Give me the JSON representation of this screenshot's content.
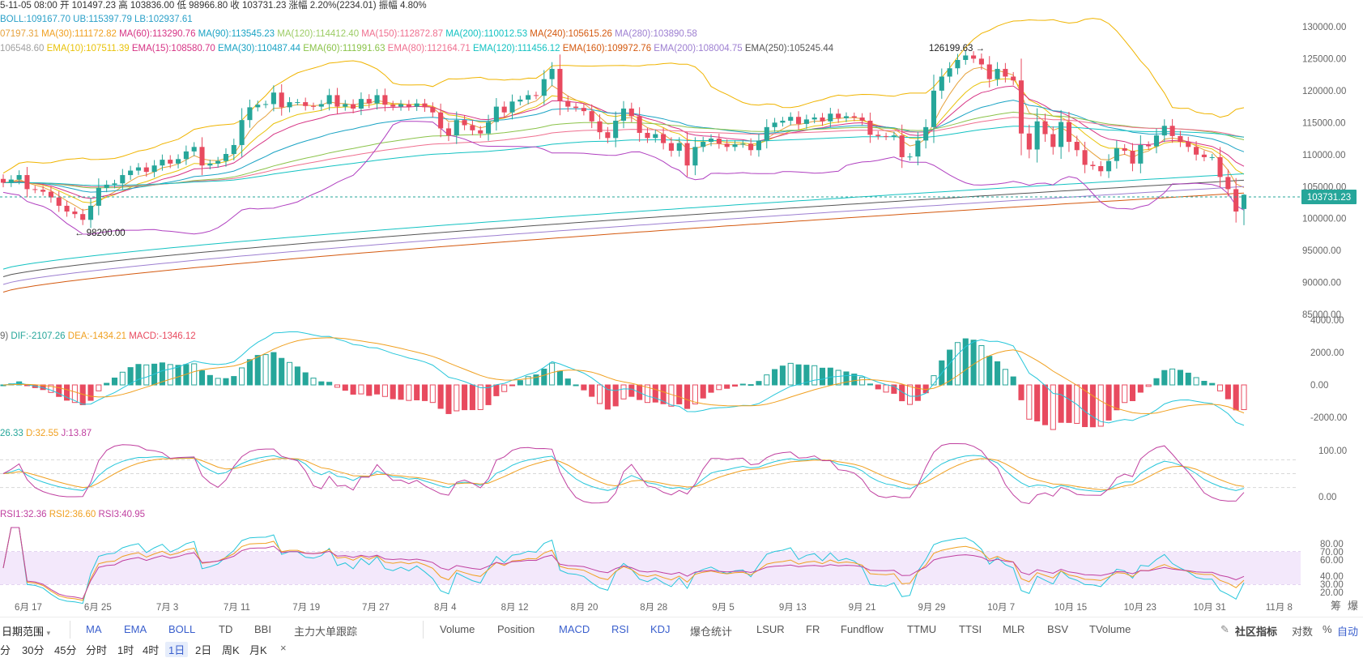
{
  "header": {
    "ohlc": "5-11-05 08:00 开 101497.23 高 103836.00 低 98966.80 收 103731.23 涨幅 2.20%(2234.01) 振幅 4.80%",
    "boll": "BOLL:109167.70 UB:115397.79 LB:102937.61",
    "ma": [
      {
        "text": "07197.31",
        "color": "#e6a23c"
      },
      {
        "text": "MA(30):111172.82",
        "color": "#f0a020"
      },
      {
        "text": "MA(60):113290.76",
        "color": "#d63384"
      },
      {
        "text": "MA(90):113545.23",
        "color": "#1aa3c4"
      },
      {
        "text": "MA(120):114412.40",
        "color": "#9ccc65"
      },
      {
        "text": "MA(150):112872.87",
        "color": "#ef6f8f"
      },
      {
        "text": "MA(200):110012.53",
        "color": "#13c2c2"
      },
      {
        "text": "MA(240):105615.26",
        "color": "#d4590f"
      },
      {
        "text": "MA(280):103890.58",
        "color": "#9d7fd1"
      }
    ],
    "ema": [
      {
        "text": "106548.60",
        "color": "#a0a0a0"
      },
      {
        "text": "EMA(10):107511.39",
        "color": "#e8c20a"
      },
      {
        "text": "EMA(15):108580.70",
        "color": "#d63384"
      },
      {
        "text": "EMA(30):110487.44",
        "color": "#1aa3c4"
      },
      {
        "text": "EMA(60):111991.63",
        "color": "#8bc34a"
      },
      {
        "text": "EMA(80):112164.71",
        "color": "#ef6f8f"
      },
      {
        "text": "EMA(120):111456.12",
        "color": "#13c2c2"
      },
      {
        "text": "EMA(160):109972.76",
        "color": "#d4590f"
      },
      {
        "text": "EMA(200):108004.75",
        "color": "#9d7fd1"
      },
      {
        "text": "EMA(250):105245.44",
        "color": "#555555"
      }
    ],
    "macd": [
      {
        "text": "9)",
        "color": "#666666"
      },
      {
        "text": "DIF:-2107.26",
        "color": "#26a69a"
      },
      {
        "text": "DEA:-1434.21",
        "color": "#f0a020"
      },
      {
        "text": "MACD:-1346.12",
        "color": "#e84a5f"
      }
    ],
    "kdj": [
      {
        "text": "26.33",
        "color": "#26a69a"
      },
      {
        "text": "D:32.55",
        "color": "#f0a020"
      },
      {
        "text": "J:13.87",
        "color": "#c040a0"
      }
    ],
    "rsi": [
      {
        "text": "RSI1:32.36",
        "color": "#c040a0"
      },
      {
        "text": "RSI2:36.60",
        "color": "#f0a020"
      },
      {
        "text": "RSI3:40.95",
        "color": "#c040a0"
      }
    ]
  },
  "annotations": {
    "high_label": "126199.63 →",
    "low_label": "← 98200.00",
    "current_price": "103731.23"
  },
  "chart_data": {
    "type": "candlestick",
    "symbol_interval": "1日",
    "price_axis_ticks": [
      "130000.00",
      "125000.00",
      "120000.00",
      "115000.00",
      "110000.00",
      "105000.00",
      "100000.00",
      "95000.00",
      "90000.00",
      "85000.00"
    ],
    "price_range": [
      84000,
      130500
    ],
    "macd_axis_ticks": [
      "4000.00",
      "2000.00",
      "0.00",
      "-2000.00"
    ],
    "kdj_axis_ticks": [
      "100.00",
      "0.00"
    ],
    "rsi_axis_ticks": [
      "80.00",
      "70.00",
      "60.00",
      "40.00",
      "30.00",
      "20.00"
    ],
    "x_labels": [
      "6月 17",
      "6月 25",
      "7月 3",
      "7月 11",
      "7月 19",
      "7月 27",
      "8月 4",
      "8月 12",
      "8月 20",
      "8月 28",
      "9月 5",
      "9月 13",
      "9月 21",
      "9月 29",
      "10月 7",
      "10月 15",
      "10月 23",
      "10月 31",
      "11月 8"
    ],
    "close": [
      105600,
      106100,
      106800,
      104600,
      104500,
      104200,
      103300,
      102000,
      101100,
      100700,
      99800,
      102000,
      104800,
      105300,
      105500,
      106800,
      107500,
      108000,
      107300,
      108300,
      109200,
      108600,
      109300,
      110500,
      111200,
      108300,
      108600,
      109000,
      110100,
      111500,
      115400,
      117400,
      117800,
      117900,
      119700,
      117400,
      118200,
      118200,
      117600,
      117500,
      117900,
      119300,
      117500,
      117900,
      117200,
      118700,
      118000,
      119300,
      117800,
      117500,
      117900,
      117500,
      118000,
      117400,
      116600,
      114100,
      113000,
      115400,
      114600,
      113800,
      113300,
      115100,
      117500,
      116600,
      118300,
      118600,
      119300,
      119200,
      121800,
      123400,
      118400,
      117500,
      117300,
      116800,
      115200,
      113500,
      112600,
      115300,
      117200,
      116000,
      113400,
      112600,
      113200,
      111800,
      110600,
      111800,
      108300,
      111200,
      112000,
      112500,
      111700,
      111200,
      111600,
      111700,
      110700,
      112200,
      114300,
      115000,
      115300,
      115900,
      114800,
      115500,
      115800,
      115200,
      116400,
      115700,
      116000,
      115800,
      115300,
      113100,
      112900,
      112800,
      113000,
      109600,
      109700,
      112200,
      114300,
      120000,
      122200,
      123500,
      124800,
      125500,
      125000,
      124100,
      121800,
      123400,
      122200,
      121600,
      113300,
      110800,
      115200,
      113200,
      111200,
      115100,
      112000,
      110700,
      108400,
      108200,
      107400,
      109000,
      111000,
      110600,
      108600,
      111500,
      111300,
      113000,
      114500,
      112900,
      112000,
      111200,
      110000,
      109600,
      109600,
      106500,
      104600,
      101100,
      103731
    ],
    "candle_open_first_last": [
      106200,
      101497
    ],
    "last_candle": {
      "open": 101497.23,
      "high": 103836.0,
      "low": 98966.8,
      "close": 103731.23
    },
    "extremes": {
      "high": 126199.63,
      "low": 98200.0
    },
    "indicators": {
      "BOLL": {
        "mid": 109167.7,
        "upper": 115397.79,
        "lower": 102937.61
      },
      "MACD": {
        "DIF": -2107.26,
        "DEA": -1434.21,
        "MACD": -1346.12
      },
      "KDJ": {
        "K": 26.33,
        "D": 32.55,
        "J": 13.87
      },
      "RSI": {
        "RSI1": 32.36,
        "RSI2": 36.6,
        "RSI3": 40.95
      }
    }
  },
  "colors": {
    "up": "#26a69a",
    "down": "#e84a5f",
    "grid": "#f2f2f2",
    "axis_text": "#666666",
    "price_tag": "#26a69a",
    "rsi_band": "#f3e8fb"
  },
  "right_side": {
    "label1": "筹",
    "label2": "爆"
  },
  "toolbar": {
    "date_range": "日期范围",
    "main_indicators": [
      "MA",
      "EMA",
      "BOLL",
      "TD",
      "BBI",
      "主力大单跟踪"
    ],
    "sub_indicators": [
      "Volume",
      "Position",
      "MACD",
      "RSI",
      "KDJ",
      "爆仓统计",
      "LSUR",
      "FR",
      "Fundflow",
      "TTMU",
      "TTSI",
      "MLR",
      "BSV",
      "TVolume"
    ],
    "community": "社区指标",
    "log": "对数",
    "percent": "%",
    "auto": "自动"
  },
  "timeframes": {
    "items": [
      "分",
      "30分",
      "45分",
      "分时",
      "1时",
      "4时",
      "1日",
      "2日",
      "周K",
      "月K"
    ],
    "active": "1日",
    "close_symbol": "×"
  }
}
